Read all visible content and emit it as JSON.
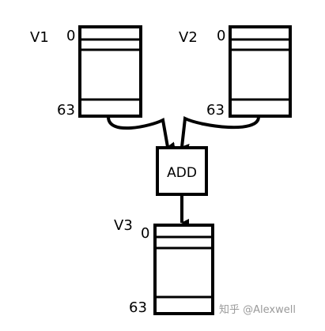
{
  "registers": {
    "v1": {
      "name": "V1",
      "top_index": "0",
      "bottom_index": "63"
    },
    "v2": {
      "name": "V2",
      "top_index": "0",
      "bottom_index": "63"
    },
    "v3": {
      "name": "V3",
      "top_index": "0",
      "bottom_index": "63"
    }
  },
  "operation": {
    "label": "ADD"
  },
  "watermark": {
    "text": "知乎 @Alexwell"
  },
  "colors": {
    "stroke": "#000000",
    "background": "#ffffff",
    "watermark": "#9a9a9a"
  }
}
